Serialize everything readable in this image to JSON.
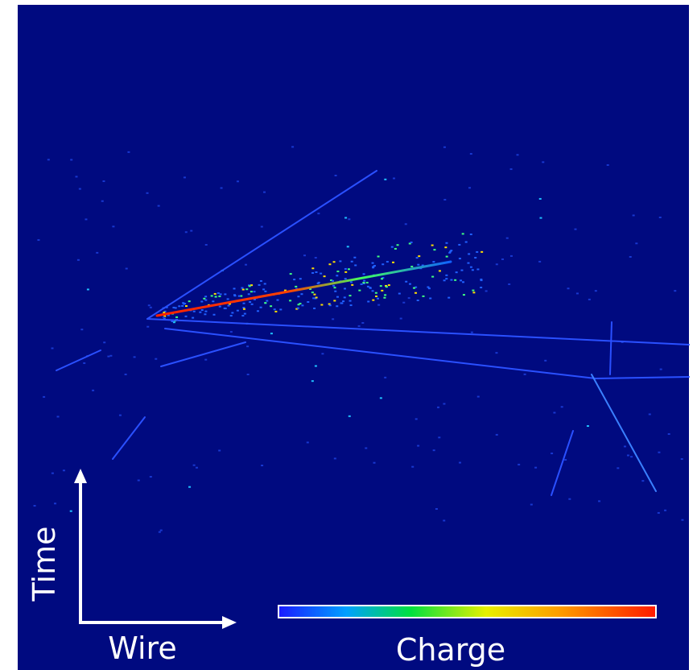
{
  "axes": {
    "vertical": "Time",
    "horizontal": "Wire"
  },
  "colorbar": {
    "label": "Charge"
  }
}
